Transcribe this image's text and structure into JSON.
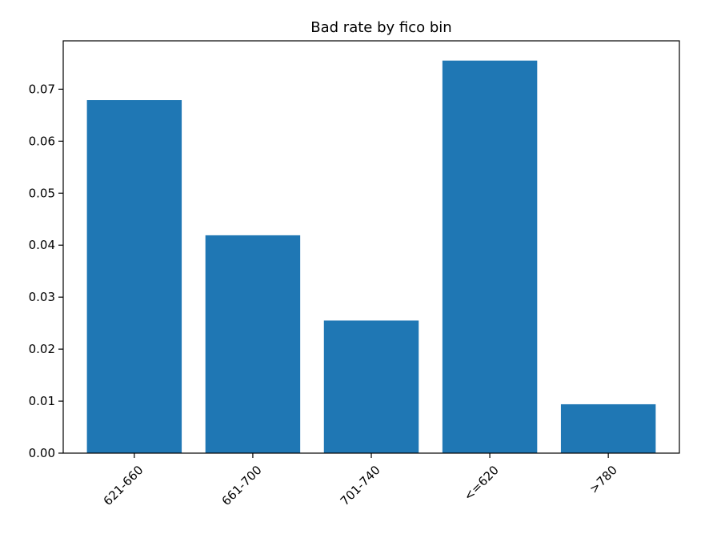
{
  "chart_data": {
    "type": "bar",
    "title": "Bad rate by fico bin",
    "xlabel": "",
    "ylabel": "",
    "categories": [
      "621-660",
      "661-700",
      "701-740",
      "<=620",
      ">780"
    ],
    "values": [
      0.0679,
      0.0419,
      0.0255,
      0.0755,
      0.0094
    ],
    "ylim": [
      0,
      0.0793
    ],
    "yticks": [
      0.0,
      0.01,
      0.02,
      0.03,
      0.04,
      0.05,
      0.06,
      0.07
    ],
    "ytick_labels": [
      "0.00",
      "0.01",
      "0.02",
      "0.03",
      "0.04",
      "0.05",
      "0.06",
      "0.07"
    ],
    "xtick_rotation": 45,
    "grid": false,
    "legend": "none",
    "bar_color": "#1f77b4"
  }
}
